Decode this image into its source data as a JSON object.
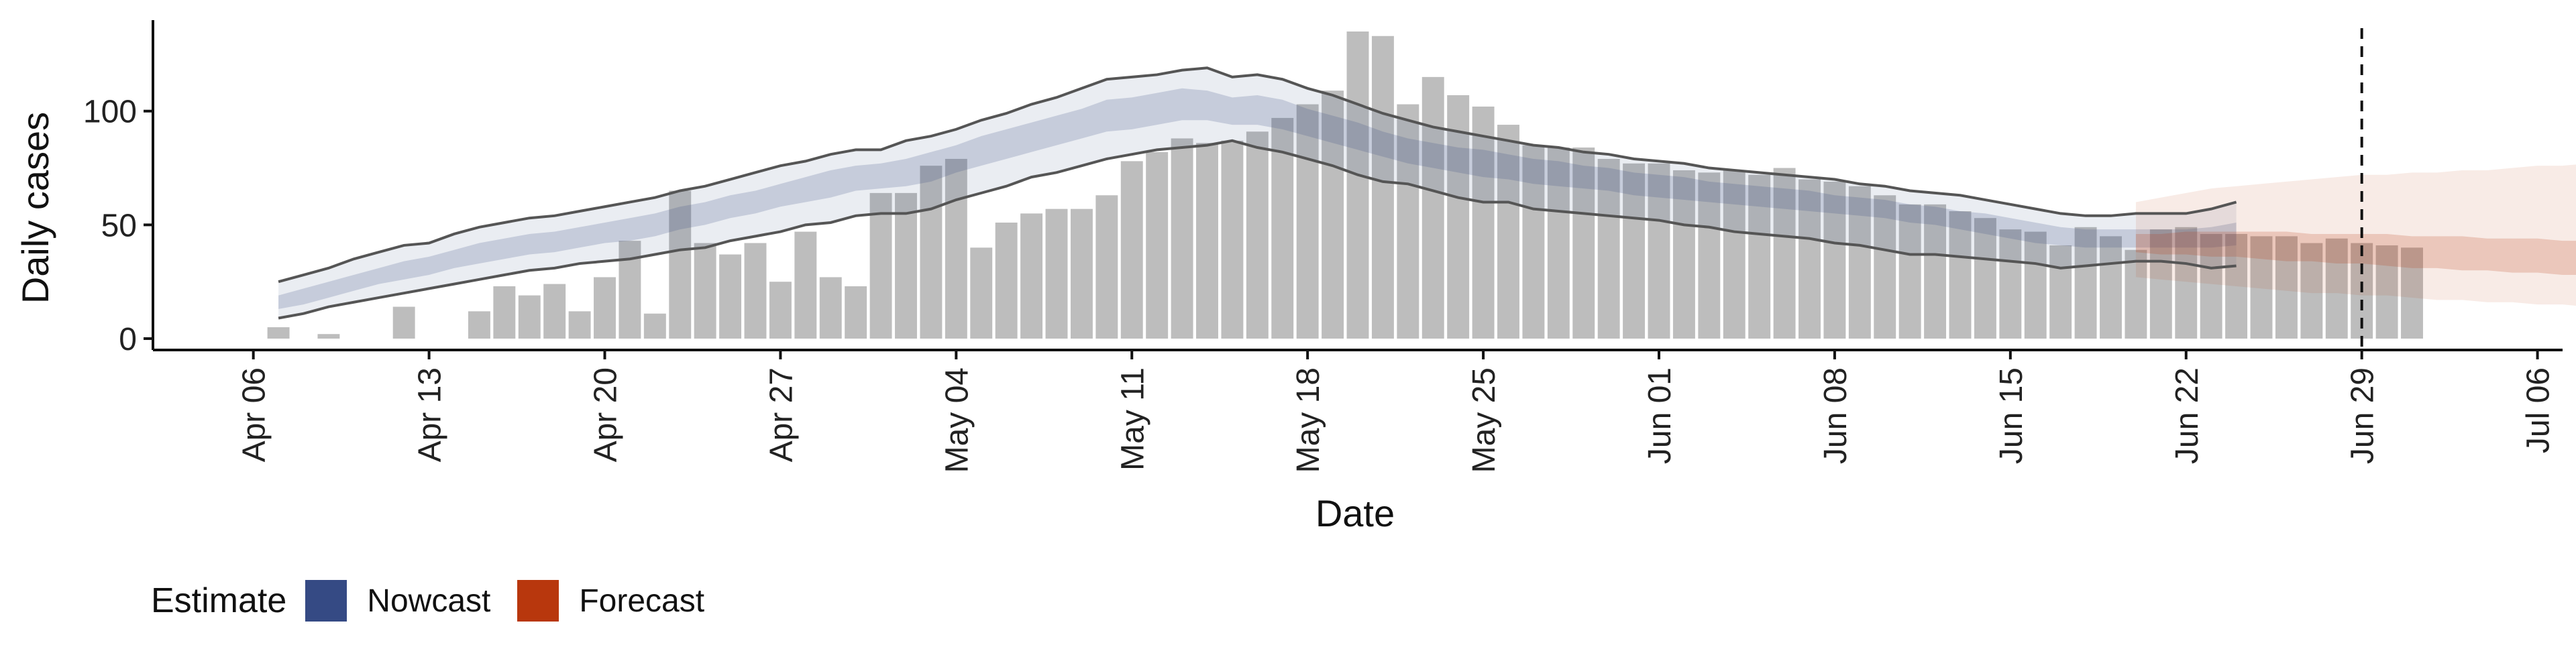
{
  "chart_data": {
    "type": "bar",
    "title": "",
    "xlabel": "Date",
    "ylabel": "Daily cases",
    "ylim": [
      -5,
      140
    ],
    "y_ticks": [
      0,
      50,
      100
    ],
    "x_ticks": [
      "2020-04-06",
      "2020-04-13",
      "2020-04-20",
      "2020-04-27",
      "2020-05-04",
      "2020-05-11",
      "2020-05-18",
      "2020-05-25",
      "2020-06-01",
      "2020-06-08",
      "2020-06-15",
      "2020-06-22",
      "2020-06-29",
      "2020-07-06"
    ],
    "x_tick_labels": [
      "Apr 06",
      "Apr 13",
      "Apr 20",
      "Apr 27",
      "May 04",
      "May 11",
      "May 18",
      "May 25",
      "Jun 01",
      "Jun 08",
      "Jun 15",
      "Jun 22",
      "Jun 29",
      "Jul 06"
    ],
    "xlim": [
      "2020-04-02",
      "2020-07-07"
    ],
    "grid": false,
    "legend_position": "bottom",
    "vline_date": "2020-06-29",
    "bar_start": "2020-04-07",
    "bars": [
      5,
      0,
      2,
      0,
      0,
      14,
      0,
      0,
      12,
      23,
      19,
      24,
      12,
      27,
      43,
      11,
      65,
      42,
      37,
      42,
      25,
      47,
      27,
      23,
      64,
      64,
      76,
      79,
      40,
      51,
      55,
      57,
      57,
      63,
      78,
      82,
      88,
      86,
      87,
      91,
      97,
      103,
      109,
      135,
      133,
      103,
      115,
      107,
      102,
      94,
      85,
      84,
      84,
      79,
      77,
      77,
      74,
      73,
      74,
      72,
      75,
      70,
      69,
      67,
      63,
      59,
      59,
      56,
      53,
      48,
      47,
      41,
      49,
      45,
      39,
      48,
      49,
      46,
      46,
      45,
      45,
      42,
      44,
      42,
      41,
      40
    ],
    "nowcast": {
      "start": "2020-04-07",
      "outer_upper": [
        25,
        28,
        31,
        35,
        38,
        41,
        42,
        46,
        49,
        51,
        53,
        54,
        56,
        58,
        60,
        62,
        65,
        67,
        70,
        73,
        76,
        78,
        81,
        83,
        83,
        87,
        89,
        92,
        96,
        99,
        103,
        106,
        110,
        114,
        115,
        116,
        118,
        119,
        115,
        116,
        114,
        110,
        107,
        103,
        99,
        96,
        93,
        91,
        89,
        87,
        85,
        84,
        82,
        81,
        79,
        78,
        77,
        75,
        74,
        73,
        72,
        71,
        70,
        68,
        67,
        65,
        64,
        63,
        61,
        59,
        57,
        55,
        54,
        54,
        55,
        55,
        55,
        57,
        60
      ],
      "inner_upper": [
        19,
        22,
        25,
        28,
        31,
        34,
        36,
        39,
        42,
        44,
        46,
        47,
        49,
        51,
        53,
        55,
        58,
        60,
        63,
        65,
        68,
        71,
        74,
        76,
        77,
        79,
        82,
        85,
        89,
        92,
        95,
        98,
        101,
        105,
        106,
        108,
        110,
        109,
        106,
        107,
        105,
        101,
        98,
        95,
        91,
        88,
        86,
        84,
        83,
        81,
        79,
        78,
        76,
        75,
        73,
        72,
        71,
        69,
        68,
        67,
        66,
        65,
        63,
        62,
        61,
        59,
        58,
        56,
        55,
        53,
        51,
        49,
        48,
        48,
        48,
        48,
        48,
        49,
        51
      ],
      "inner_lower": [
        13,
        15,
        18,
        21,
        24,
        26,
        28,
        31,
        33,
        35,
        37,
        38,
        40,
        42,
        43,
        45,
        48,
        50,
        53,
        55,
        58,
        60,
        62,
        65,
        66,
        67,
        69,
        73,
        76,
        79,
        82,
        85,
        88,
        91,
        92,
        94,
        96,
        96,
        94,
        94,
        92,
        89,
        86,
        83,
        80,
        77,
        75,
        73,
        71,
        70,
        68,
        67,
        66,
        65,
        63,
        62,
        61,
        60,
        59,
        58,
        57,
        56,
        55,
        54,
        53,
        51,
        50,
        48,
        46,
        44,
        42,
        41,
        40,
        40,
        40,
        40,
        40,
        40,
        41
      ],
      "outer_lower": [
        9,
        11,
        14,
        16,
        18,
        20,
        22,
        24,
        26,
        28,
        30,
        31,
        33,
        34,
        35,
        37,
        39,
        40,
        43,
        45,
        47,
        50,
        51,
        54,
        55,
        55,
        57,
        61,
        64,
        67,
        71,
        73,
        76,
        79,
        81,
        83,
        84,
        85,
        87,
        84,
        82,
        79,
        76,
        72,
        69,
        68,
        65,
        62,
        60,
        60,
        57,
        56,
        55,
        54,
        53,
        52,
        50,
        49,
        47,
        46,
        45,
        44,
        42,
        41,
        39,
        37,
        37,
        36,
        35,
        34,
        33,
        31,
        32,
        33,
        34,
        34,
        33,
        31,
        32
      ]
    },
    "forecast": {
      "start": "2020-06-20",
      "outer_upper": [
        60,
        62,
        64,
        66,
        67,
        68,
        69,
        70,
        71,
        72,
        72,
        73,
        73,
        74,
        74,
        75,
        76,
        76,
        77,
        78
      ],
      "inner_upper": [
        46,
        46,
        47,
        47,
        47,
        47,
        47,
        46,
        46,
        46,
        46,
        45,
        45,
        45,
        44,
        44,
        44,
        43,
        43,
        43
      ],
      "inner_lower": [
        38,
        37,
        37,
        36,
        36,
        35,
        34,
        34,
        33,
        33,
        32,
        31,
        31,
        30,
        30,
        29,
        29,
        28,
        28,
        27
      ],
      "outer_lower": [
        27,
        26,
        25,
        24,
        23,
        22,
        21,
        20,
        20,
        19,
        19,
        18,
        17,
        17,
        16,
        16,
        15,
        15,
        14,
        13
      ]
    },
    "series": [
      {
        "name": "Nowcast"
      },
      {
        "name": "Forecast"
      }
    ],
    "colors": {
      "bars": "#bdbdbd",
      "nowcast": "#354a84",
      "forecast": "#b8370d",
      "outline": "#555555"
    }
  },
  "legend": {
    "title": "Estimate",
    "items": [
      {
        "label": "Nowcast",
        "color": "#354a84"
      },
      {
        "label": "Forecast",
        "color": "#b8370d"
      }
    ]
  }
}
